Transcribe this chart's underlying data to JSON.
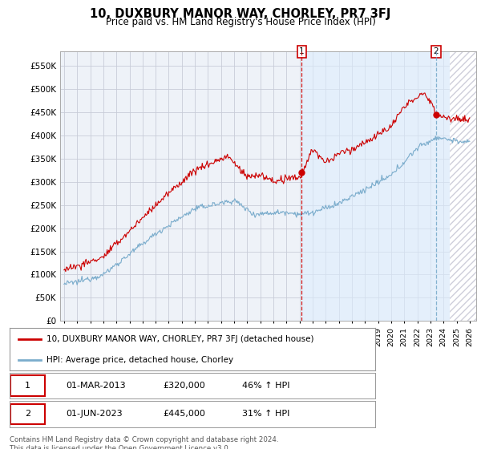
{
  "title": "10, DUXBURY MANOR WAY, CHORLEY, PR7 3FJ",
  "subtitle": "Price paid vs. HM Land Registry's House Price Index (HPI)",
  "ylabel_ticks": [
    "£0",
    "£50K",
    "£100K",
    "£150K",
    "£200K",
    "£250K",
    "£300K",
    "£350K",
    "£400K",
    "£450K",
    "£500K",
    "£550K"
  ],
  "ytick_vals": [
    0,
    50000,
    100000,
    150000,
    200000,
    250000,
    300000,
    350000,
    400000,
    450000,
    500000,
    550000
  ],
  "ylim": [
    0,
    580000
  ],
  "red_line_color": "#cc0000",
  "blue_line_color": "#7aaccc",
  "blue_vline_color": "#7aaccc",
  "shade_color": "#ddeeff",
  "background_color": "#ffffff",
  "plot_bg_color": "#eef2f8",
  "grid_color": "#c8ccd8",
  "transaction1": {
    "label": "1",
    "date": "01-MAR-2013",
    "price": 320000,
    "pct": "46%",
    "direction": "↑"
  },
  "transaction2": {
    "label": "2",
    "date": "01-JUN-2023",
    "price": 445000,
    "pct": "31%",
    "direction": "↑"
  },
  "legend_red": "10, DUXBURY MANOR WAY, CHORLEY, PR7 3FJ (detached house)",
  "legend_blue": "HPI: Average price, detached house, Chorley",
  "footer": "Contains HM Land Registry data © Crown copyright and database right 2024.\nThis data is licensed under the Open Government Licence v3.0.",
  "vline1_x": 2013.17,
  "vline2_x": 2023.42,
  "hatch_start": 2024.5,
  "xmin": 1994.7,
  "xmax": 2026.5
}
